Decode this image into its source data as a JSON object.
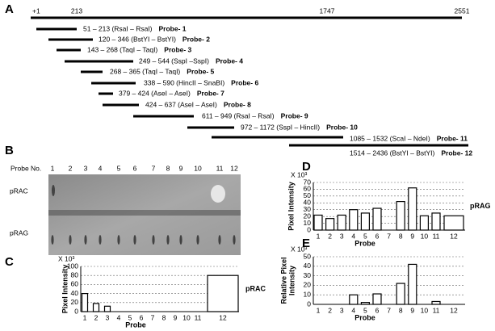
{
  "probe_map": {
    "panel_label": "A",
    "scale_labels": [
      "+1",
      "213",
      "1747",
      "2551"
    ],
    "probes": [
      {
        "text": "51 – 213 (RsaI – RsaI)",
        "name": "Probe- 1"
      },
      {
        "text": "120 – 346 (BstYI – BstYI)",
        "name": "Probe- 2"
      },
      {
        "text": "143 – 268 (TaqI – TaqI)",
        "name": "Probe- 3"
      },
      {
        "text": "249 – 544 (SspI –SspI)",
        "name": "Probe- 4"
      },
      {
        "text": "268 – 365 (TaqI – TaqI)",
        "name": "Probe- 5"
      },
      {
        "text": "338 – 590 (HincII – SnaBI)",
        "name": "Probe- 6"
      },
      {
        "text": "379 – 424 (AseI – AseI)",
        "name": "Probe- 7"
      },
      {
        "text": "424 – 637 (AseI – AseI)",
        "name": "Probe- 8"
      },
      {
        "text": "611 – 949 (RsaI – RsaI)",
        "name": "Probe- 9"
      },
      {
        "text": "972 – 1172 (SspI – HincII)",
        "name": "Probe- 10"
      },
      {
        "text": "1085 – 1532 (ScaI – NdeI)",
        "name": "Probe- 11"
      },
      {
        "text": "1514 – 2436 (BstYI – BstYI)",
        "name": "Probe- 12"
      }
    ]
  },
  "blot": {
    "panel_label": "B",
    "probe_no_label": "Probe No.",
    "lanes": [
      "1",
      "2",
      "3",
      "4",
      "5",
      "6",
      "7",
      "8",
      "9",
      "10",
      "11",
      "12"
    ],
    "rows": [
      "pRAC",
      "pRAG"
    ]
  },
  "chart_data": [
    {
      "type": "bar",
      "panel_label": "C",
      "unit_label": "X 10³",
      "ylabel": "Pixel Intensity",
      "xlabel": "Probe",
      "annotation": "pRAC",
      "categories": [
        "1",
        "2",
        "3",
        "4",
        "5",
        "6",
        "7",
        "8",
        "9",
        "10",
        "11",
        "12"
      ],
      "values": [
        40,
        18,
        12,
        0,
        0,
        0,
        0,
        0,
        0,
        0,
        0,
        80
      ],
      "ylim": [
        0,
        100
      ],
      "yticks": [
        0,
        20,
        40,
        60,
        80,
        100
      ],
      "grid": true,
      "color": "#ffffff"
    },
    {
      "type": "bar",
      "panel_label": "D",
      "unit_label": "X 10³",
      "ylabel": "Pixel Intensity",
      "xlabel": "Probe",
      "annotation": "pRAG",
      "categories": [
        "1",
        "2",
        "3",
        "4",
        "5",
        "6",
        "7",
        "8",
        "9",
        "10",
        "11",
        "12"
      ],
      "values": [
        22,
        17,
        22,
        30,
        25,
        32,
        0,
        42,
        62,
        21,
        25,
        21
      ],
      "ylim": [
        0,
        70
      ],
      "yticks": [
        0,
        10,
        20,
        30,
        40,
        50,
        60,
        70
      ],
      "grid": true,
      "color": "#ffffff"
    },
    {
      "type": "bar",
      "panel_label": "E",
      "unit_label": "X 10³",
      "ylabel": [
        "Relative Pixel",
        "Intensity"
      ],
      "xlabel": "Probe",
      "categories": [
        "1",
        "2",
        "3",
        "4",
        "5",
        "6",
        "7",
        "8",
        "9",
        "10",
        "11",
        "12"
      ],
      "values": [
        0,
        0,
        0,
        10,
        2,
        11,
        0,
        22,
        42,
        0,
        3,
        0
      ],
      "ylim": [
        0,
        50
      ],
      "yticks": [
        0,
        10,
        20,
        30,
        40,
        50
      ],
      "grid": true,
      "color": "#ffffff"
    }
  ]
}
